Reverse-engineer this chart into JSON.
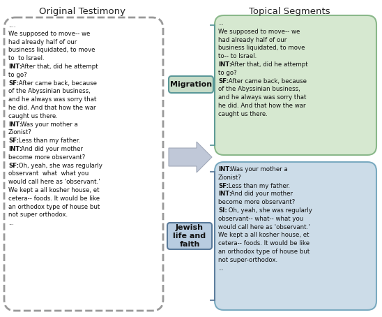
{
  "title_left": "Original Testimony",
  "title_right": "Topical Segments",
  "left_box_text": "....\nWe supposed to move-- we\nhad already half of our\nbusiness liquidated, to move\nto  to Israel.\nINT: After that, did he attempt\nto go?\nSF: After came back, because\nof the Abyssinian business,\nand he always was sorry that\nhe did. And that how the war\ncaught us there.\nINT: Was your mother a\nZionist?\nSF: Less than my father.\nINT: And did your mother\nbecome more observant?\nSF: Oh, yeah, she was regularly\nobservant  what  what you\nwould call here as 'observant.'\nWe kept a all kosher house, et\ncetera-- foods. It would be like\nan orthodox type of house but\nnot super orthodox.\n...",
  "green_box_text": "...\nWe supposed to move-- we\nhad already half of our\nbusiness liquidated, to move\nto-- to Israel.\nINT: After that, did he attempt\nto go?\nSF: After came back, because\nof the Abyssinian business,\nand he always was sorry that\nhe did. And that how the war\ncaught us there.",
  "blue_box_text": "INT: Was your mother a\nZionist?\nSF: Less than my father.\nINT: And did your mother\nbecome more observant?\nSI: Oh, yeah, she was regularly\nobservant-- what-- what you\nwould call here as 'observant.'\nWe kept a all kosher house, et\ncetera-- foods. It would be like\nan orthodox type of house but\nnot super-orthodox.\n...",
  "label_migration": "Migration",
  "label_jewish": "Jewish\nlife and\nfaith",
  "green_box_color": "#d6e8d0",
  "green_box_border": "#8ab88a",
  "blue_box_color": "#ccdce8",
  "blue_box_border": "#7aaac0",
  "migration_label_bg": "#c8dcc8",
  "migration_label_border": "#5a9898",
  "jewish_label_bg": "#b8cce0",
  "jewish_label_border": "#5a7a9a",
  "left_box_border": "#999999",
  "background_color": "#ffffff",
  "text_color": "#111111",
  "arrow_body_color": "#c0c8d8",
  "arrow_edge_color": "#a0a8b8",
  "bracket_green_color": "#5a9898",
  "bracket_blue_color": "#5a7a9a"
}
